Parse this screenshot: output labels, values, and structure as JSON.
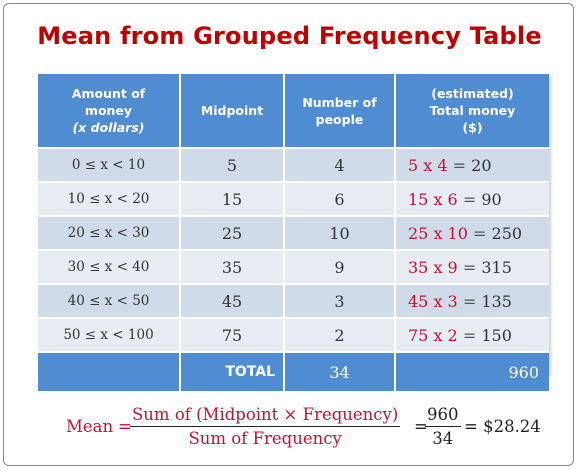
{
  "title": "Mean from Grouped Frequency Table",
  "table": {
    "headers": {
      "amount": [
        "Amount of",
        "money",
        "(x dollars)"
      ],
      "midpoint": [
        "Midpoint"
      ],
      "people": [
        "Number of",
        "people"
      ],
      "total": [
        "(estimated)",
        "Total money",
        "($)"
      ]
    },
    "rows": [
      {
        "interval": "0 ≤ x < 10",
        "midpoint": "5",
        "people": "4",
        "expr": "5 x 4",
        "eq": "=",
        "value": "20"
      },
      {
        "interval": "10 ≤ x < 20",
        "midpoint": "15",
        "people": "6",
        "expr": "15 x 6",
        "eq": "=",
        "value": "90"
      },
      {
        "interval": "20 ≤ x < 30",
        "midpoint": "25",
        "people": "10",
        "expr": "25 x 10",
        "eq": "=",
        "value": "250"
      },
      {
        "interval": "30 ≤ x < 40",
        "midpoint": "35",
        "people": "9",
        "expr": "35 x 9",
        "eq": "=",
        "value": "315"
      },
      {
        "interval": "40 ≤ x < 50",
        "midpoint": "45",
        "people": "3",
        "expr": "45 x 3",
        "eq": "=",
        "value": "135"
      },
      {
        "interval": "50 ≤ x < 100",
        "midpoint": "75",
        "people": "2",
        "expr": "75 x 2",
        "eq": "=",
        "value": "150"
      }
    ],
    "total": {
      "label": "TOTAL",
      "people": "34",
      "money": "960"
    }
  },
  "formula": {
    "label": "Mean",
    "eq": "=",
    "numerator": "Sum of (Midpoint × Frequency)",
    "denominator": "Sum of Frequency",
    "eq2": "=",
    "num_value": "960",
    "den_value": "34",
    "result": "= $28.24"
  },
  "colors": {
    "title": "#c00000",
    "header_bg": "#4f8cd2",
    "row_odd": "#cfdbe8",
    "row_even": "#e6ecf2",
    "accent_red": "#c8102e"
  }
}
